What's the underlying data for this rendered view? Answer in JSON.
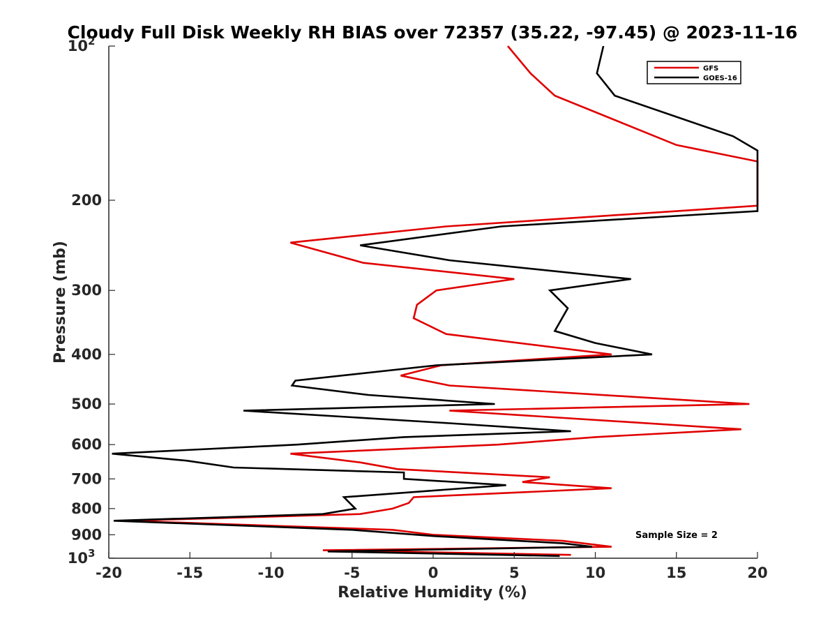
{
  "chart_data": {
    "type": "line",
    "title": "Cloudy Full Disk Weekly RH BIAS over 72357 (35.22, -97.45) @ 2023-11-16",
    "xlabel": "Relative Humidity (%)",
    "ylabel": "Pressure (mb)",
    "xlim": [
      -20,
      20
    ],
    "ylim": [
      100,
      1000
    ],
    "y_scale": "log",
    "y_reversed": true,
    "grid": false,
    "legend_position": "top-right",
    "annotation": "Sample Size = 2",
    "x_ticks": [
      {
        "value": -20,
        "label": "-20"
      },
      {
        "value": -15,
        "label": "-15"
      },
      {
        "value": -10,
        "label": "-10"
      },
      {
        "value": -5,
        "label": "-5"
      },
      {
        "value": 0,
        "label": "0"
      },
      {
        "value": 5,
        "label": "5"
      },
      {
        "value": 10,
        "label": "10"
      },
      {
        "value": 15,
        "label": "15"
      },
      {
        "value": 20,
        "label": "20"
      }
    ],
    "y_ticks": [
      {
        "value": 100,
        "label": "10",
        "sup": "2"
      },
      {
        "value": 200,
        "label": "200"
      },
      {
        "value": 300,
        "label": "300"
      },
      {
        "value": 400,
        "label": "400"
      },
      {
        "value": 500,
        "label": "500"
      },
      {
        "value": 600,
        "label": "600"
      },
      {
        "value": 700,
        "label": "700"
      },
      {
        "value": 800,
        "label": "800"
      },
      {
        "value": 900,
        "label": "900"
      },
      {
        "value": 1000,
        "label": "10",
        "sup": "3"
      }
    ],
    "series": [
      {
        "name": "GFS",
        "color": "#e00000",
        "points": [
          {
            "x": 4.6,
            "y": 100
          },
          {
            "x": 6.0,
            "y": 113
          },
          {
            "x": 7.5,
            "y": 125
          },
          {
            "x": 15.0,
            "y": 156
          },
          {
            "x": 20.0,
            "y": 168
          },
          {
            "x": 20.0,
            "y": 205
          },
          {
            "x": 0.8,
            "y": 225
          },
          {
            "x": -8.8,
            "y": 242
          },
          {
            "x": -4.3,
            "y": 265
          },
          {
            "x": 5.0,
            "y": 285
          },
          {
            "x": 0.2,
            "y": 300
          },
          {
            "x": -1.0,
            "y": 320
          },
          {
            "x": -1.2,
            "y": 340
          },
          {
            "x": 0.8,
            "y": 365
          },
          {
            "x": 11.0,
            "y": 400
          },
          {
            "x": 0.5,
            "y": 420
          },
          {
            "x": -2.0,
            "y": 440
          },
          {
            "x": 1.0,
            "y": 460
          },
          {
            "x": 19.5,
            "y": 500
          },
          {
            "x": 1.0,
            "y": 515
          },
          {
            "x": 19.0,
            "y": 560
          },
          {
            "x": 10.0,
            "y": 580
          },
          {
            "x": 4.0,
            "y": 600
          },
          {
            "x": -8.8,
            "y": 625
          },
          {
            "x": -4.5,
            "y": 650
          },
          {
            "x": -2.2,
            "y": 670
          },
          {
            "x": 7.2,
            "y": 695
          },
          {
            "x": 5.5,
            "y": 710
          },
          {
            "x": 11.0,
            "y": 730
          },
          {
            "x": -1.2,
            "y": 760
          },
          {
            "x": -1.5,
            "y": 780
          },
          {
            "x": -2.5,
            "y": 800
          },
          {
            "x": -4.5,
            "y": 820
          },
          {
            "x": -19.0,
            "y": 845
          },
          {
            "x": -2.5,
            "y": 880
          },
          {
            "x": 0.0,
            "y": 900
          },
          {
            "x": 8.0,
            "y": 925
          },
          {
            "x": 11.0,
            "y": 950
          },
          {
            "x": -6.8,
            "y": 965
          },
          {
            "x": 8.5,
            "y": 985
          }
        ]
      },
      {
        "name": "GOES-16",
        "color": "#000000",
        "points": [
          {
            "x": 10.5,
            "y": 100
          },
          {
            "x": 10.1,
            "y": 113
          },
          {
            "x": 11.2,
            "y": 125
          },
          {
            "x": 18.5,
            "y": 150
          },
          {
            "x": 20.0,
            "y": 160
          },
          {
            "x": 20.0,
            "y": 210
          },
          {
            "x": 4.2,
            "y": 225
          },
          {
            "x": -4.5,
            "y": 245
          },
          {
            "x": 1.0,
            "y": 262
          },
          {
            "x": 12.2,
            "y": 285
          },
          {
            "x": 7.2,
            "y": 300
          },
          {
            "x": 8.3,
            "y": 325
          },
          {
            "x": 7.5,
            "y": 360
          },
          {
            "x": 10.0,
            "y": 380
          },
          {
            "x": 13.5,
            "y": 400
          },
          {
            "x": 0.2,
            "y": 420
          },
          {
            "x": -8.5,
            "y": 450
          },
          {
            "x": -8.7,
            "y": 460
          },
          {
            "x": -4.0,
            "y": 480
          },
          {
            "x": 3.8,
            "y": 500
          },
          {
            "x": -11.7,
            "y": 515
          },
          {
            "x": 1.0,
            "y": 545
          },
          {
            "x": 8.5,
            "y": 565
          },
          {
            "x": -1.8,
            "y": 580
          },
          {
            "x": -8.4,
            "y": 600
          },
          {
            "x": -19.8,
            "y": 625
          },
          {
            "x": -15.2,
            "y": 645
          },
          {
            "x": -12.3,
            "y": 665
          },
          {
            "x": -1.8,
            "y": 680
          },
          {
            "x": -1.8,
            "y": 700
          },
          {
            "x": 4.5,
            "y": 720
          },
          {
            "x": -5.5,
            "y": 760
          },
          {
            "x": -4.8,
            "y": 800
          },
          {
            "x": -6.8,
            "y": 820
          },
          {
            "x": -19.7,
            "y": 845
          },
          {
            "x": -5.0,
            "y": 880
          },
          {
            "x": 0.0,
            "y": 905
          },
          {
            "x": 8.0,
            "y": 935
          },
          {
            "x": 9.8,
            "y": 950
          },
          {
            "x": -6.5,
            "y": 970
          },
          {
            "x": 7.8,
            "y": 990
          }
        ]
      }
    ]
  }
}
